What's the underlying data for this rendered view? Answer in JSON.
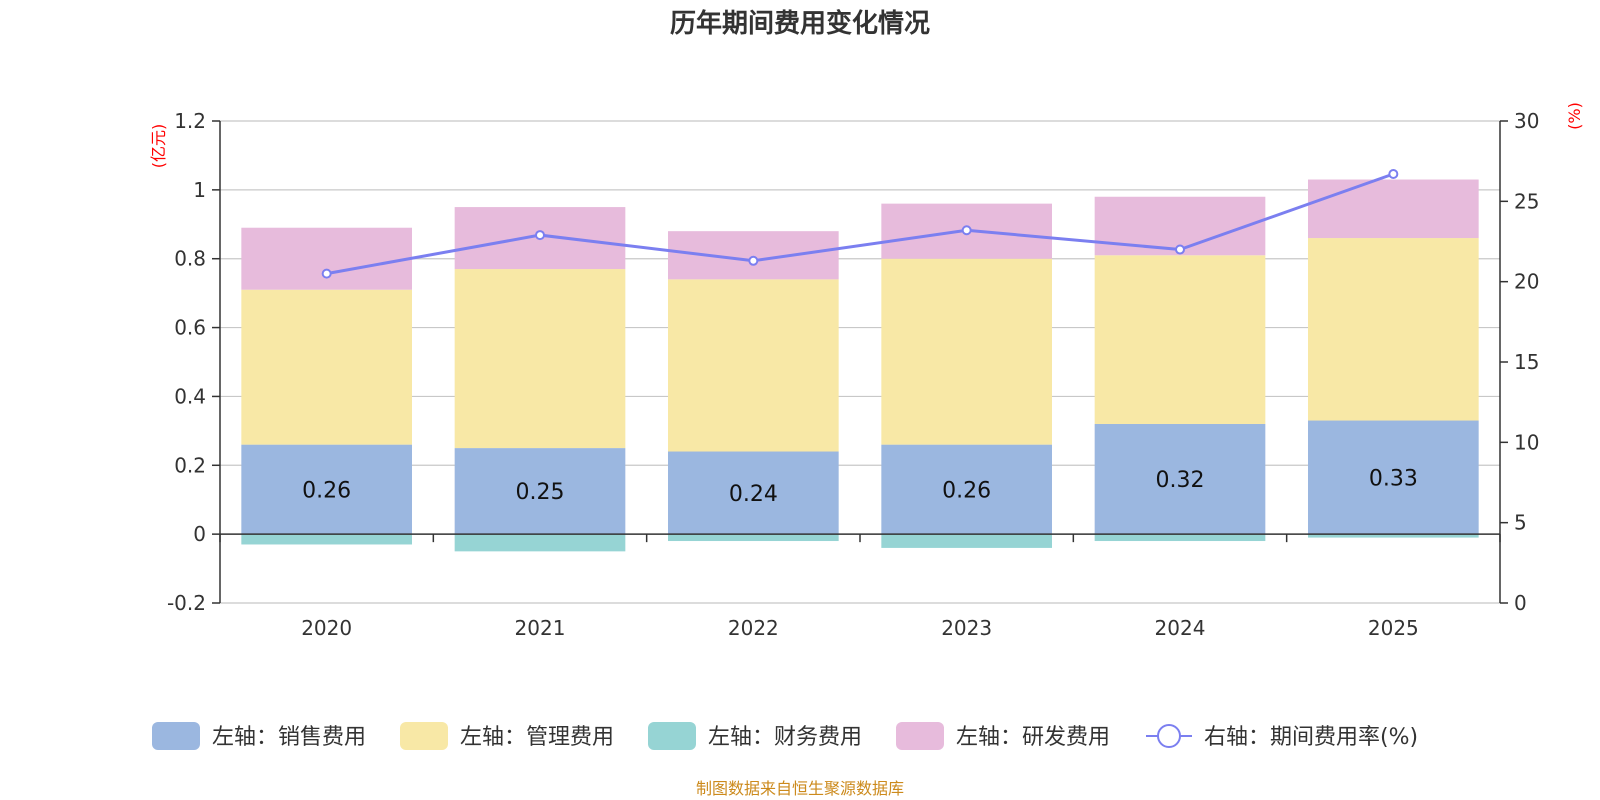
{
  "chart_data": {
    "type": "bar",
    "stacked": true,
    "title": "历年期间费用变化情况",
    "categories": [
      "2020",
      "2021",
      "2022",
      "2023",
      "2024",
      "2025"
    ],
    "left_axis": {
      "unit": "(亿元)",
      "min": -0.2,
      "max": 1.2,
      "ticks": [
        -0.2,
        0,
        0.2,
        0.4,
        0.6,
        0.8,
        1,
        1.2
      ],
      "tick_labels": [
        "-0.2",
        "0",
        "0.2",
        "0.4",
        "0.6",
        "0.8",
        "1",
        "1.2"
      ]
    },
    "right_axis": {
      "unit": "(%)",
      "min": 0,
      "max": 30,
      "ticks": [
        0,
        5,
        10,
        15,
        20,
        25,
        30
      ],
      "tick_labels": [
        "0",
        "5",
        "10",
        "15",
        "20",
        "25",
        "30"
      ]
    },
    "series": [
      {
        "name": "左轴：销售费用",
        "axis": "left",
        "color": "#9bb7e0",
        "values": [
          0.26,
          0.25,
          0.24,
          0.26,
          0.32,
          0.33
        ],
        "labels": [
          "0.26",
          "0.25",
          "0.24",
          "0.26",
          "0.32",
          "0.33"
        ]
      },
      {
        "name": "左轴：管理费用",
        "axis": "left",
        "color": "#f8e8a6",
        "values": [
          0.45,
          0.52,
          0.5,
          0.54,
          0.49,
          0.53
        ]
      },
      {
        "name": "左轴：财务费用",
        "axis": "left",
        "color": "#96d4d4",
        "values": [
          -0.03,
          -0.05,
          -0.02,
          -0.04,
          -0.02,
          -0.01
        ]
      },
      {
        "name": "左轴：研发费用",
        "axis": "left",
        "color": "#e7bbdc",
        "values": [
          0.18,
          0.18,
          0.14,
          0.16,
          0.17,
          0.17
        ]
      },
      {
        "name": "右轴：期间费用率(%)",
        "axis": "right",
        "type": "line",
        "color": "#7b7ff0",
        "values": [
          20.5,
          22.9,
          21.3,
          23.2,
          22.0,
          26.7
        ]
      }
    ],
    "source": "制图数据来自恒生聚源数据库"
  }
}
